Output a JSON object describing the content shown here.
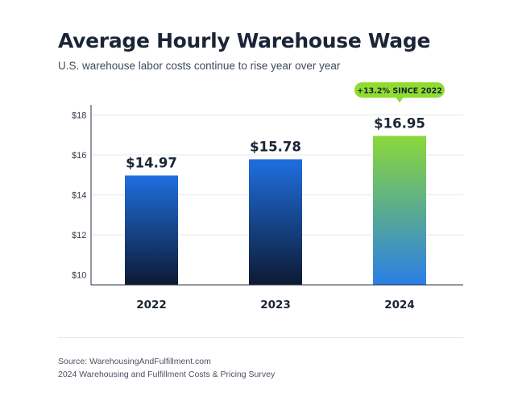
{
  "header": {
    "title": "Average Hourly Warehouse Wage",
    "subtitle": "U.S. warehouse labor costs continue to rise year over year"
  },
  "chart_data": {
    "type": "bar",
    "title": "Average Hourly Warehouse Wage",
    "subtitle": "U.S. warehouse labor costs continue to rise year over year",
    "categories": [
      "2022",
      "2023",
      "2024"
    ],
    "values": [
      14.97,
      15.78,
      16.95
    ],
    "value_labels": [
      "$14.97",
      "$15.78",
      "$16.95"
    ],
    "ylim": [
      9.5,
      18.5
    ],
    "yticks": [
      10,
      12,
      14,
      16,
      18
    ],
    "ytick_labels": [
      "$10",
      "$12",
      "$14",
      "$16",
      "$18"
    ],
    "xlabel": "",
    "ylabel": "",
    "grid": true,
    "annotation": "+13.2% SINCE 2022",
    "colors": {
      "bar_top": "#1f6fe0",
      "bar_bottom": "#0d1a33",
      "highlight_top": "#8ad83a",
      "highlight_bottom": "#2a7fe6",
      "badge": "#8fdc2f",
      "grid": "#e6e8ec",
      "axis": "#2a3140"
    }
  },
  "footer": {
    "source_line": "Source: WarehousingAndFulfillment.com",
    "survey_line": "2024 Warehousing and Fulfillment Costs & Pricing Survey"
  }
}
